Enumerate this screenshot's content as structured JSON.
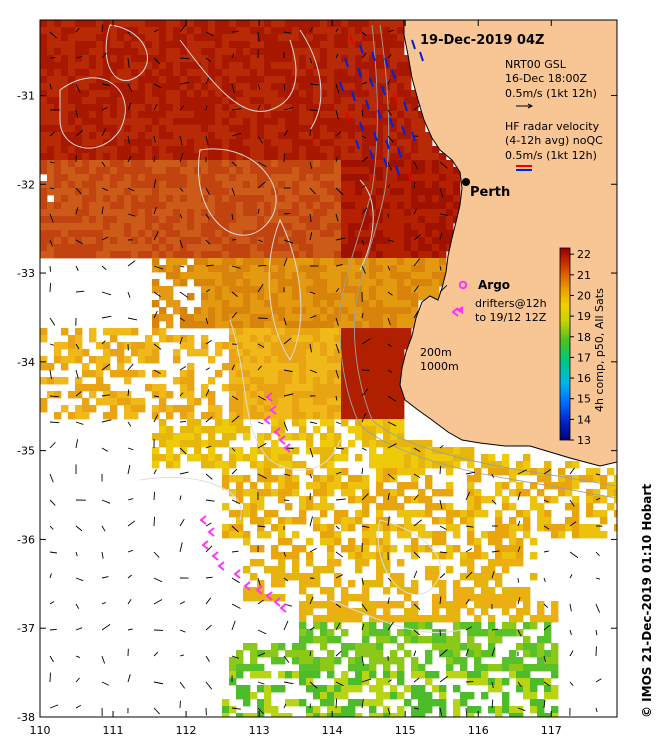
{
  "map": {
    "title": "19-Dec-2019 04Z",
    "x_ticks": [
      "110",
      "111",
      "112",
      "113",
      "114",
      "115",
      "116",
      "117"
    ],
    "y_ticks": [
      "-31",
      "-32",
      "-33",
      "-34",
      "-35",
      "-36",
      "-37",
      "-38"
    ],
    "lon_range": [
      110,
      117.9
    ],
    "lat_range": [
      -38,
      -30.15
    ],
    "legend": {
      "line1": "NRT00 GSL",
      "line2": "16-Dec 18:00Z",
      "line3": "0.5m/s (1kt 12h)",
      "hf_line1": "HF radar velocity",
      "hf_line2": "(4-12h avg) noQC",
      "hf_line3": "0.5m/s (1kt 12h)"
    },
    "place_labels": {
      "perth": "Perth",
      "argo": "Argo",
      "drifters1": "drifters@12h",
      "drifters2": "to 19/12 12Z",
      "depth1": "200m",
      "depth2": "1000m"
    },
    "colorbar": {
      "ticks": [
        "22",
        "21",
        "20",
        "19",
        "18",
        "17",
        "16",
        "15",
        "14",
        "13"
      ],
      "label": "4h comp, p50, All Sats",
      "min": 13,
      "max": 22.3
    },
    "footer": "© IMOS 21-Dec-2019 01:10 Hobart",
    "colors": {
      "land": "#f8c594",
      "coast": "#000000",
      "arrows": "#000000",
      "radar_blue": "#0022dd",
      "radar_red": "#ee0000",
      "drifter": "#ff33ff",
      "contour": "#cccccc"
    }
  }
}
